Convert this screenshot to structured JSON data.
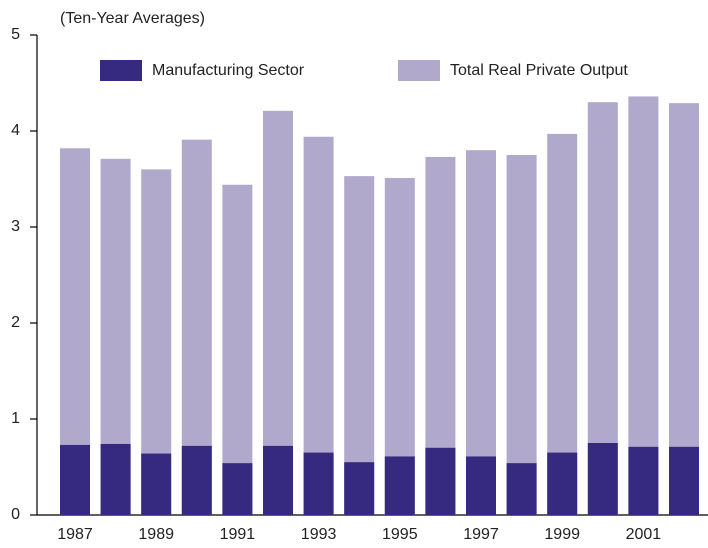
{
  "chart_data": {
    "type": "bar",
    "subtitle": "(Ten-Year Averages)",
    "categories": [
      "1987",
      null,
      "1989",
      null,
      "1991",
      null,
      "1993",
      null,
      "1995",
      null,
      "1997",
      null,
      "1999",
      null,
      "2001",
      null
    ],
    "series": [
      {
        "name": "Total Real Private Output",
        "color": "#b1a9cc",
        "values": [
          3.82,
          3.71,
          3.6,
          3.91,
          3.44,
          4.21,
          3.94,
          3.53,
          3.51,
          3.73,
          3.8,
          3.75,
          3.97,
          4.3,
          4.36,
          4.29
        ]
      },
      {
        "name": "Manufacturing Sector",
        "color": "#352a7f",
        "values": [
          0.73,
          0.74,
          0.64,
          0.72,
          0.54,
          0.72,
          0.65,
          0.55,
          0.61,
          0.7,
          0.61,
          0.54,
          0.65,
          0.75,
          0.71,
          0.71
        ]
      }
    ],
    "ylim": [
      0,
      5
    ],
    "yticks": [
      0,
      1,
      2,
      3,
      4,
      5
    ]
  }
}
